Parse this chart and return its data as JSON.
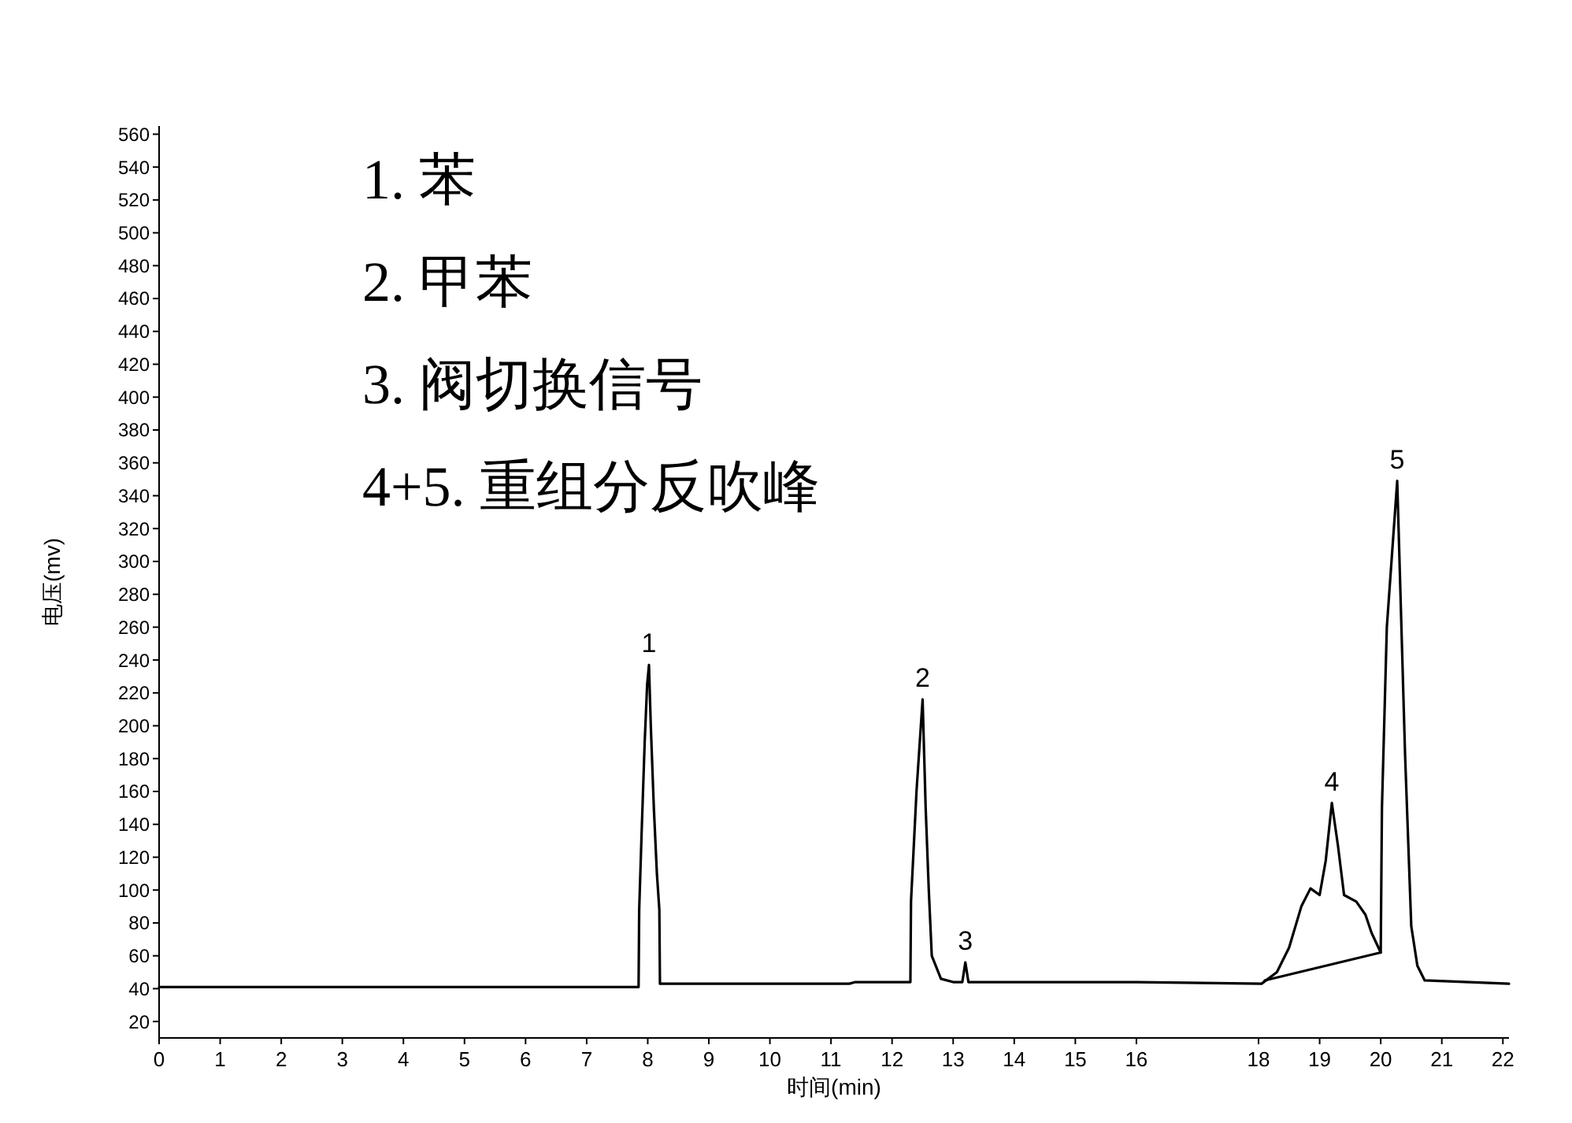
{
  "chart_data": {
    "type": "line",
    "xlabel": "时间(min)",
    "ylabel": "电压(mv)",
    "xlim": [
      0,
      22.1
    ],
    "ylim": [
      10,
      565
    ],
    "xticks": [
      0,
      1,
      2,
      3,
      4,
      5,
      6,
      7,
      8,
      9,
      10,
      11,
      12,
      13,
      14,
      15,
      16,
      18,
      19,
      20,
      21,
      22
    ],
    "yticks": [
      20,
      40,
      60,
      80,
      100,
      120,
      140,
      160,
      180,
      200,
      220,
      240,
      260,
      280,
      300,
      320,
      340,
      360,
      380,
      400,
      420,
      440,
      460,
      480,
      500,
      520,
      540,
      560
    ],
    "grid": false,
    "marker": "none",
    "line_style": "solid",
    "series": [
      {
        "color": "#000000",
        "x": [
          0,
          7.85,
          7.86,
          7.9,
          7.95,
          7.99,
          8.02,
          8.05,
          8.1,
          8.15,
          8.19,
          8.2,
          11.3,
          11.4,
          12.3,
          12.31,
          12.4,
          12.5,
          12.55,
          12.6,
          12.65,
          12.8,
          13.0,
          13.15,
          13.2,
          13.25,
          13.4,
          16,
          18.05,
          18.3,
          18.5,
          18.7,
          18.85,
          19.0,
          19.1,
          19.2,
          19.3,
          19.4,
          19.6,
          19.75,
          19.85,
          20.0,
          20.02,
          20.1,
          20.27,
          20.4,
          20.5,
          20.6,
          20.72,
          22.1
        ],
        "values": [
          41,
          41,
          88,
          135,
          190,
          225,
          237,
          200,
          150,
          110,
          88,
          43,
          43,
          44,
          44,
          93,
          160,
          216,
          150,
          101,
          60,
          46,
          44,
          44,
          56,
          44,
          44,
          44,
          43,
          50,
          65,
          90,
          101,
          97,
          118,
          153,
          127,
          97,
          93,
          85,
          74,
          62,
          150,
          260,
          349,
          181,
          78,
          54,
          45,
          43
        ]
      },
      {
        "color": "#000000",
        "x": [
          18.1,
          20.0
        ],
        "values": [
          45,
          62
        ]
      }
    ],
    "annotations": [
      "1. 苯",
      "2. 甲苯",
      "3. 阀切换信号",
      "4+5. 重组分反吹峰",
      {
        "text": "1",
        "x": 8.02,
        "y": 237
      },
      {
        "text": "2",
        "x": 12.5,
        "y": 216
      },
      {
        "text": "3",
        "x": 13.2,
        "y": 56
      },
      {
        "text": "4",
        "x": 19.2,
        "y": 153
      },
      {
        "text": "5",
        "x": 20.27,
        "y": 349
      }
    ]
  }
}
